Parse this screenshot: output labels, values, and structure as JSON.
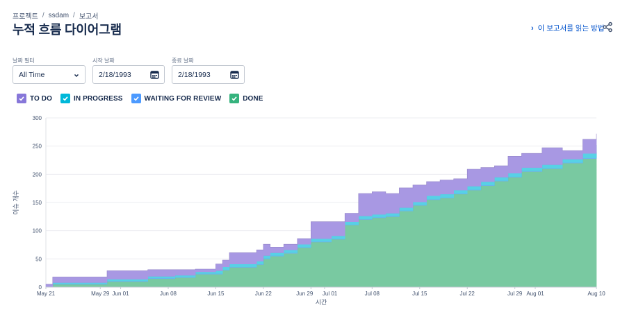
{
  "breadcrumb": {
    "items": [
      "프로젝트",
      "ssdam",
      "보고서"
    ],
    "separator": "/"
  },
  "page": {
    "title": "누적 흐름 다이어그램"
  },
  "help": {
    "link_label": "이 보고서를 읽는 방법"
  },
  "filters": {
    "date_filter": {
      "label": "날짜 필터",
      "value": "All Time"
    },
    "start_date": {
      "label": "시작 날짜",
      "value": "2/18/1993"
    },
    "end_date": {
      "label": "종료 날짜",
      "value": "2/18/1993"
    }
  },
  "legend": [
    {
      "label": "TO DO",
      "color": "#8777d9",
      "checked": true
    },
    {
      "label": "IN PROGRESS",
      "color": "#00b8d9",
      "checked": true
    },
    {
      "label": "WAITING FOR REVIEW",
      "color": "#4c9aff",
      "checked": true
    },
    {
      "label": "DONE",
      "color": "#36b37e",
      "checked": true
    }
  ],
  "chart_data": {
    "type": "area",
    "stacked": true,
    "xlabel": "시간",
    "ylabel": "이슈 개수",
    "ylim": [
      0,
      300
    ],
    "yticks": [
      0,
      50,
      100,
      150,
      200,
      250,
      300
    ],
    "grid": true,
    "xlim": [
      "2024-05-21",
      "2024-08-10"
    ],
    "xticks": [
      {
        "date": "2024-05-21",
        "label": "May 21"
      },
      {
        "date": "2024-05-29",
        "label": "May 29"
      },
      {
        "date": "2024-06-01",
        "label": "Jun 01"
      },
      {
        "date": "2024-06-08",
        "label": "Jun 08"
      },
      {
        "date": "2024-06-15",
        "label": "Jun 15"
      },
      {
        "date": "2024-06-22",
        "label": "Jun 22"
      },
      {
        "date": "2024-06-29",
        "label": "Jun 29"
      },
      {
        "date": "2024-07-01",
        "label": "Jul 01"
      },
      {
        "date": "2024-07-08",
        "label": "Jul 08"
      },
      {
        "date": "2024-07-15",
        "label": "Jul 15"
      },
      {
        "date": "2024-07-22",
        "label": "Jul 22"
      },
      {
        "date": "2024-07-29",
        "label": "Jul 29"
      },
      {
        "date": "2024-08-01",
        "label": "Aug 01"
      },
      {
        "date": "2024-08-10",
        "label": "Aug 10"
      }
    ],
    "dates": [
      "2024-05-21",
      "2024-05-22",
      "2024-05-28",
      "2024-05-29",
      "2024-05-30",
      "2024-06-05",
      "2024-06-09",
      "2024-06-12",
      "2024-06-15",
      "2024-06-16",
      "2024-06-17",
      "2024-06-18",
      "2024-06-21",
      "2024-06-22",
      "2024-06-23",
      "2024-06-25",
      "2024-06-27",
      "2024-06-29",
      "2024-07-02",
      "2024-07-04",
      "2024-07-06",
      "2024-07-08",
      "2024-07-10",
      "2024-07-12",
      "2024-07-14",
      "2024-07-16",
      "2024-07-18",
      "2024-07-20",
      "2024-07-22",
      "2024-07-24",
      "2024-07-26",
      "2024-07-28",
      "2024-07-30",
      "2024-08-02",
      "2024-08-05",
      "2024-08-08",
      "2024-08-10"
    ],
    "series": [
      {
        "name": "DONE",
        "color": "#79c9a1",
        "values": [
          0,
          5,
          5,
          5,
          10,
          15,
          17,
          23,
          23,
          30,
          35,
          35,
          40,
          50,
          55,
          60,
          70,
          80,
          85,
          110,
          120,
          123,
          125,
          135,
          145,
          155,
          158,
          165,
          172,
          180,
          188,
          195,
          205,
          210,
          220,
          228,
          238
        ]
      },
      {
        "name": "WAITING FOR REVIEW",
        "color": "#6fb4f5",
        "values": [
          0,
          1,
          1,
          1,
          1,
          1,
          1,
          1,
          1,
          1,
          1,
          1,
          1,
          1,
          1,
          1,
          1,
          1,
          1,
          1,
          1,
          1,
          1,
          1,
          1,
          1,
          1,
          1,
          1,
          1,
          1,
          1,
          1,
          1,
          1,
          1,
          1
        ]
      },
      {
        "name": "IN PROGRESS",
        "color": "#57d1e6",
        "values": [
          0,
          2,
          2,
          2,
          3,
          3,
          3,
          3,
          5,
          5,
          5,
          5,
          5,
          5,
          5,
          5,
          5,
          5,
          5,
          5,
          5,
          5,
          5,
          5,
          5,
          6,
          6,
          6,
          6,
          6,
          6,
          6,
          6,
          6,
          6,
          8,
          13
        ]
      },
      {
        "name": "TO DO",
        "color": "#a898e3",
        "values": [
          5,
          10,
          10,
          10,
          15,
          12,
          10,
          5,
          12,
          12,
          20,
          20,
          20,
          20,
          10,
          10,
          10,
          30,
          25,
          15,
          40,
          40,
          35,
          35,
          30,
          25,
          25,
          20,
          30,
          25,
          20,
          30,
          25,
          30,
          15,
          25,
          20
        ]
      }
    ]
  }
}
